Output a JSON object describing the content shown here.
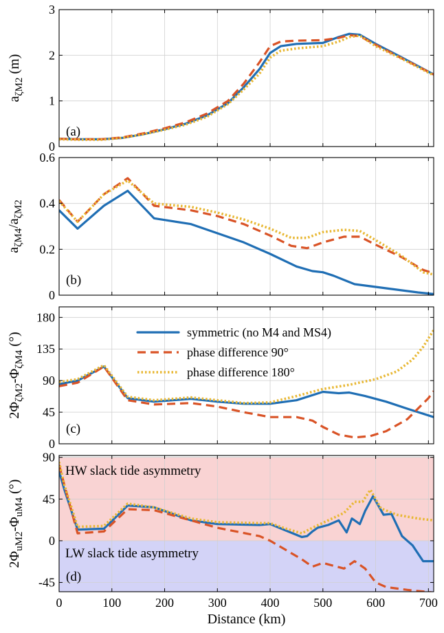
{
  "figure": {
    "xlabel": "Distance (km)",
    "xlim": [
      0,
      710
    ],
    "xticks": [
      0,
      100,
      200,
      300,
      400,
      500,
      600,
      700
    ],
    "colors": {
      "symmetric": "#1f6eb4",
      "pd90": "#d95326",
      "pd180": "#e8b732",
      "hw_band": "#f9d3d3",
      "lw_band": "#d3d3f7"
    },
    "legend": {
      "placement": "top-right of panel (c)",
      "entries": [
        "symmetric (no M4 and MS4)",
        "phase difference 90°",
        "phase difference 180°"
      ]
    }
  },
  "chart_data": [
    {
      "type": "line",
      "panel_label": "(a)",
      "ylabel_main": "a",
      "ylabel_sub": "ζM2",
      "ylabel_tail": " (m)",
      "ylim": [
        0,
        3
      ],
      "yticks": [
        0,
        1,
        2,
        3
      ],
      "ytick_labels": [
        "0",
        "1",
        "2",
        "3"
      ],
      "grid": true,
      "series": [
        {
          "key": "symmetric",
          "x": [
            0,
            40,
            80,
            120,
            160,
            200,
            240,
            280,
            320,
            350,
            380,
            400,
            420,
            450,
            500,
            530,
            550,
            570,
            600,
            650,
            710
          ],
          "y": [
            0.17,
            0.16,
            0.16,
            0.19,
            0.27,
            0.38,
            0.5,
            0.68,
            0.95,
            1.3,
            1.7,
            2.05,
            2.2,
            2.25,
            2.27,
            2.4,
            2.47,
            2.45,
            2.25,
            1.95,
            1.58
          ]
        },
        {
          "key": "pd90",
          "x": [
            0,
            40,
            80,
            120,
            160,
            200,
            240,
            280,
            320,
            350,
            380,
            400,
            420,
            450,
            500,
            530,
            550,
            570,
            600,
            650,
            710
          ],
          "y": [
            0.17,
            0.16,
            0.16,
            0.2,
            0.29,
            0.4,
            0.53,
            0.72,
            1.0,
            1.38,
            1.85,
            2.2,
            2.3,
            2.32,
            2.33,
            2.38,
            2.44,
            2.42,
            2.23,
            1.93,
            1.58
          ]
        },
        {
          "key": "pd180",
          "x": [
            0,
            40,
            80,
            120,
            160,
            200,
            240,
            280,
            320,
            350,
            380,
            400,
            420,
            450,
            500,
            530,
            550,
            570,
            600,
            650,
            710
          ],
          "y": [
            0.16,
            0.15,
            0.15,
            0.19,
            0.27,
            0.37,
            0.48,
            0.65,
            0.93,
            1.25,
            1.6,
            1.95,
            2.1,
            2.15,
            2.2,
            2.3,
            2.4,
            2.43,
            2.2,
            1.92,
            1.56
          ]
        }
      ]
    },
    {
      "type": "line",
      "panel_label": "(b)",
      "ylabel_main": "a",
      "ylabel_sub": "ζM4",
      "ylabel_mid": "/a",
      "ylabel_sub2": "ζM2",
      "ylim": [
        0,
        0.6
      ],
      "yticks": [
        0,
        0.2,
        0.4,
        0.6
      ],
      "ytick_labels": [
        "0",
        "0.2",
        "0.4",
        "0.6"
      ],
      "grid": true,
      "series": [
        {
          "key": "symmetric",
          "x": [
            0,
            35,
            85,
            130,
            180,
            250,
            300,
            350,
            400,
            450,
            480,
            500,
            520,
            560,
            620,
            680,
            710
          ],
          "y": [
            0.37,
            0.29,
            0.39,
            0.455,
            0.335,
            0.31,
            0.27,
            0.23,
            0.18,
            0.125,
            0.105,
            0.1,
            0.085,
            0.048,
            0.03,
            0.012,
            0.005
          ]
        },
        {
          "key": "pd90",
          "x": [
            0,
            35,
            85,
            130,
            180,
            250,
            300,
            350,
            400,
            440,
            470,
            500,
            540,
            570,
            600,
            650,
            690,
            710
          ],
          "y": [
            0.415,
            0.32,
            0.44,
            0.51,
            0.39,
            0.37,
            0.345,
            0.31,
            0.26,
            0.215,
            0.205,
            0.23,
            0.255,
            0.255,
            0.22,
            0.165,
            0.11,
            0.095
          ]
        },
        {
          "key": "pd180",
          "x": [
            0,
            35,
            85,
            130,
            180,
            250,
            300,
            350,
            400,
            440,
            470,
            500,
            540,
            570,
            600,
            650,
            690,
            710
          ],
          "y": [
            0.41,
            0.32,
            0.44,
            0.5,
            0.4,
            0.385,
            0.36,
            0.33,
            0.29,
            0.25,
            0.25,
            0.275,
            0.285,
            0.28,
            0.24,
            0.17,
            0.1,
            0.09
          ]
        }
      ]
    },
    {
      "type": "line",
      "panel_label": "(c)",
      "ylabel_main": "2Φ",
      "ylabel_sub": "ζM2",
      "ylabel_mid": "-Φ",
      "ylabel_sub2": "ζM4",
      "ylabel_tail": " (°)",
      "ylim": [
        0,
        195
      ],
      "yticks": [
        0,
        45,
        90,
        135,
        180
      ],
      "ytick_labels": [
        "0",
        "45",
        "90",
        "135",
        "180"
      ],
      "grid": true,
      "series": [
        {
          "key": "symmetric",
          "x": [
            0,
            35,
            85,
            130,
            180,
            250,
            300,
            350,
            400,
            450,
            500,
            530,
            550,
            580,
            620,
            660,
            710
          ],
          "y": [
            85,
            90,
            110,
            65,
            60,
            64,
            60,
            57,
            57,
            62,
            74,
            72,
            73,
            68,
            60,
            50,
            38
          ]
        },
        {
          "key": "pd90",
          "x": [
            0,
            35,
            85,
            130,
            180,
            250,
            300,
            350,
            400,
            450,
            480,
            500,
            530,
            560,
            590,
            620,
            660,
            700,
            710
          ],
          "y": [
            82,
            87,
            110,
            62,
            56,
            58,
            53,
            45,
            38,
            38,
            33,
            24,
            13,
            9,
            11,
            18,
            35,
            65,
            75
          ]
        },
        {
          "key": "pd180",
          "x": [
            0,
            35,
            85,
            130,
            180,
            250,
            300,
            350,
            400,
            450,
            500,
            550,
            600,
            640,
            670,
            690,
            710
          ],
          "y": [
            88,
            92,
            112,
            67,
            62,
            66,
            62,
            58,
            59,
            68,
            78,
            84,
            92,
            103,
            120,
            138,
            162
          ]
        }
      ]
    },
    {
      "type": "line",
      "panel_label": "(d)",
      "ylabel_main": "2Φ",
      "ylabel_sub": "uM2",
      "ylabel_mid": "-Φ",
      "ylabel_sub2": "uM4",
      "ylabel_tail": " (°)",
      "ylim": [
        -55,
        92
      ],
      "yticks": [
        -45,
        0,
        45,
        90
      ],
      "ytick_labels": [
        "-45",
        "0",
        "45",
        "90"
      ],
      "grid": true,
      "bands": [
        {
          "key": "hw_band",
          "from": 0,
          "to": 90,
          "label": "HW slack tide asymmetry"
        },
        {
          "key": "lw_band",
          "from": -55,
          "to": 0,
          "label": "LW slack tide asymmetry"
        }
      ],
      "series": [
        {
          "key": "symmetric",
          "x": [
            0,
            10,
            35,
            85,
            130,
            180,
            250,
            300,
            380,
            400,
            430,
            460,
            470,
            480,
            490,
            510,
            530,
            545,
            555,
            570,
            580,
            595,
            615,
            630,
            650,
            670,
            690,
            710
          ],
          "y": [
            75,
            55,
            12,
            13,
            38,
            36,
            22,
            18,
            17,
            18,
            11,
            4,
            5,
            10,
            14,
            17,
            22,
            9,
            24,
            18,
            32,
            48,
            28,
            29,
            5,
            -5,
            -22,
            -22
          ]
        },
        {
          "key": "pd90",
          "x": [
            0,
            10,
            35,
            85,
            130,
            180,
            250,
            300,
            380,
            400,
            430,
            460,
            480,
            500,
            520,
            540,
            560,
            580,
            600,
            620,
            660,
            710
          ],
          "y": [
            82,
            60,
            8,
            10,
            34,
            33,
            22,
            14,
            5,
            0,
            -10,
            -20,
            -28,
            -24,
            -27,
            -30,
            -22,
            -30,
            -45,
            -50,
            -53,
            -56
          ]
        },
        {
          "key": "pd180",
          "x": [
            0,
            10,
            35,
            85,
            130,
            180,
            250,
            300,
            380,
            400,
            430,
            460,
            480,
            510,
            540,
            560,
            575,
            590,
            610,
            640,
            680,
            710
          ],
          "y": [
            85,
            60,
            15,
            16,
            40,
            36,
            24,
            20,
            19,
            19,
            13,
            8,
            14,
            22,
            30,
            42,
            42,
            55,
            35,
            28,
            24,
            22
          ]
        }
      ]
    }
  ]
}
